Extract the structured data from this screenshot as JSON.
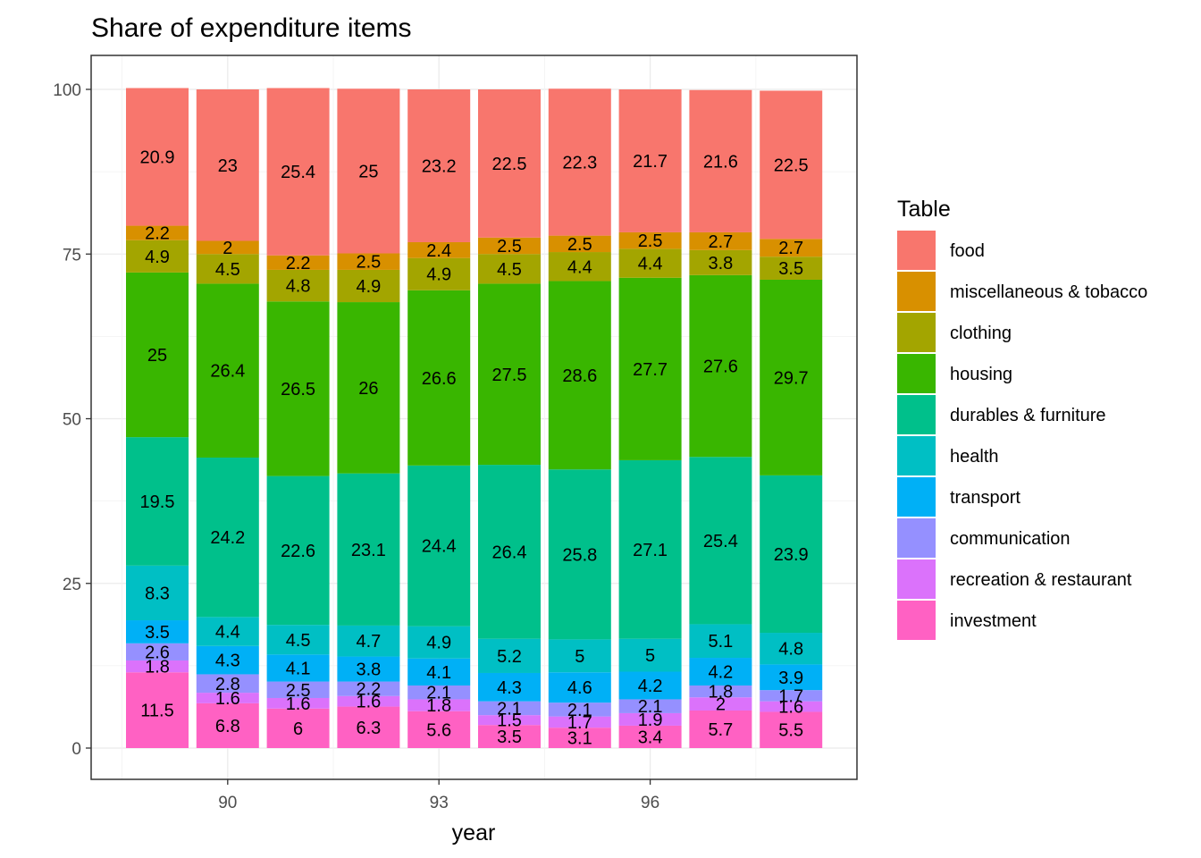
{
  "chart_data": {
    "type": "bar",
    "stacked": true,
    "title": "Share of expenditure items",
    "xlabel": "year",
    "ylabel": "",
    "ylim": [
      0,
      100
    ],
    "y_ticks": [
      0,
      25,
      50,
      75,
      100
    ],
    "x_ticks": [
      90,
      93,
      96
    ],
    "grid": true,
    "legend_title": "Table",
    "legend_position": "right",
    "categories": [
      89,
      90,
      91,
      92,
      93,
      94,
      95,
      96,
      97,
      98
    ],
    "series": [
      {
        "name": "investment",
        "color": "#FF61C3",
        "values": [
          11.5,
          6.8,
          6,
          6.3,
          5.6,
          3.5,
          3.1,
          3.4,
          5.7,
          5.5
        ]
      },
      {
        "name": "recreation & restaurant",
        "color": "#DB72FB",
        "values": [
          1.8,
          1.6,
          1.6,
          1.6,
          1.8,
          1.5,
          1.7,
          1.9,
          2,
          1.6
        ]
      },
      {
        "name": "communication",
        "color": "#9590FF",
        "values": [
          2.6,
          2.8,
          2.5,
          2.2,
          2.1,
          2.1,
          2.1,
          2.1,
          1.8,
          1.7
        ]
      },
      {
        "name": "transport",
        "color": "#00B0F6",
        "values": [
          3.5,
          4.3,
          4.1,
          3.8,
          4.1,
          4.3,
          4.6,
          4.2,
          4.2,
          3.9
        ]
      },
      {
        "name": "health",
        "color": "#00BFC4",
        "values": [
          8.3,
          4.4,
          4.5,
          4.7,
          4.9,
          5.2,
          5,
          5,
          5.1,
          4.8
        ]
      },
      {
        "name": "durables & furniture",
        "color": "#00C08B",
        "values": [
          19.5,
          24.2,
          22.6,
          23.1,
          24.4,
          26.4,
          25.8,
          27.1,
          25.4,
          23.9
        ]
      },
      {
        "name": "housing",
        "color": "#39B600",
        "values": [
          25,
          26.4,
          26.5,
          26,
          26.6,
          27.5,
          28.6,
          27.7,
          27.6,
          29.7
        ]
      },
      {
        "name": "clothing",
        "color": "#A3A500",
        "values": [
          4.9,
          4.5,
          4.8,
          4.9,
          4.9,
          4.5,
          4.4,
          4.4,
          3.8,
          3.5
        ]
      },
      {
        "name": "miscellaneous & tobacco",
        "color": "#D89000",
        "values": [
          2.2,
          2,
          2.2,
          2.5,
          2.4,
          2.5,
          2.5,
          2.5,
          2.7,
          2.7
        ]
      },
      {
        "name": "food",
        "color": "#F8766D",
        "values": [
          20.9,
          23,
          25.4,
          25,
          23.2,
          22.5,
          22.3,
          21.7,
          21.6,
          22.5
        ]
      }
    ],
    "legend_order": [
      "food",
      "miscellaneous & tobacco",
      "clothing",
      "housing",
      "durables & furniture",
      "health",
      "transport",
      "communication",
      "recreation & restaurant",
      "investment"
    ]
  }
}
